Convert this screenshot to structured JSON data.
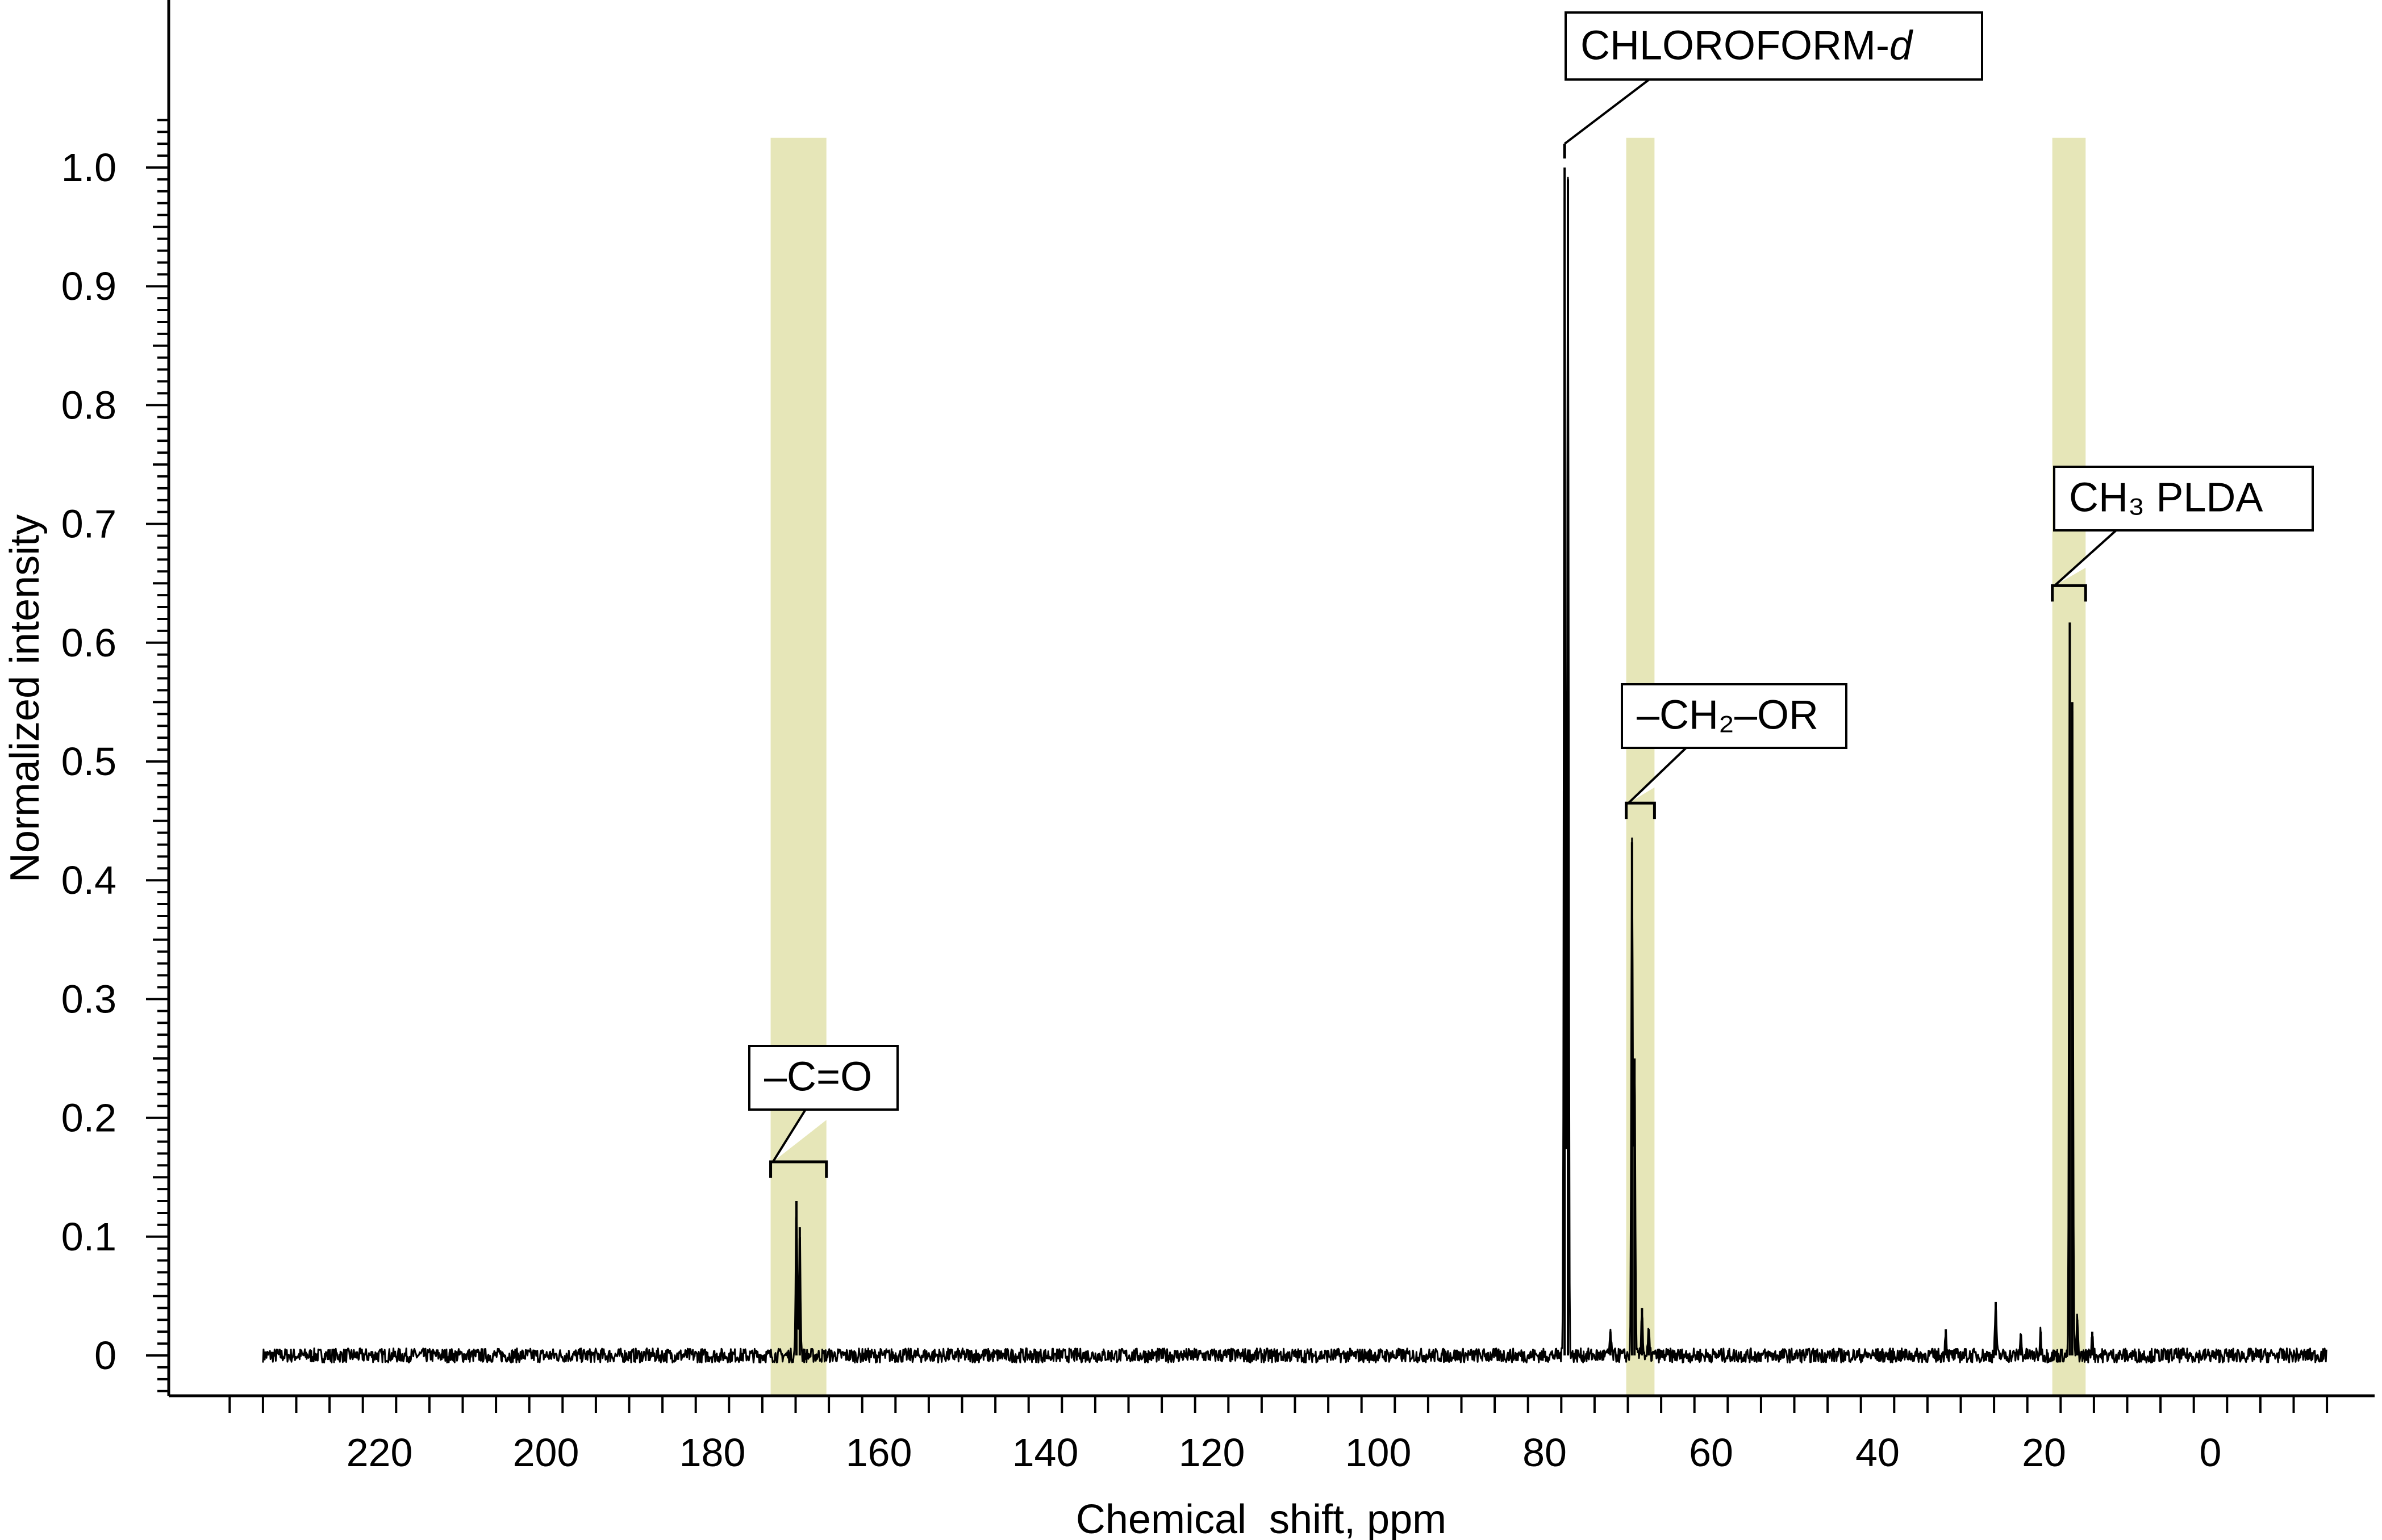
{
  "chart_data": {
    "type": "line",
    "xlabel": "Chemical  shift, ppm",
    "ylabel": "Normalized intensity",
    "xlim": [
      -14,
      240
    ],
    "x_reversed": true,
    "ylim": [
      -0.035,
      1.14
    ],
    "x_ticks": [
      220,
      200,
      180,
      160,
      140,
      120,
      100,
      80,
      60,
      40,
      20,
      0
    ],
    "x_tick_labels": [
      "220",
      "200",
      "180",
      "160",
      "140",
      "120",
      "100",
      "80",
      "60",
      "40",
      "20",
      "0"
    ],
    "y_ticks": [
      0,
      0.1,
      0.2,
      0.3,
      0.4,
      0.5,
      0.6,
      0.7,
      0.8,
      0.9,
      1.0
    ],
    "y_tick_labels": [
      "0",
      "0.1",
      "0.2",
      "0.3",
      "0.4",
      "0.5",
      "0.6",
      "0.7",
      "0.8",
      "0.9",
      "1.0"
    ],
    "grid": false,
    "legend": "none",
    "colors": {
      "line": "#000000",
      "band": "#e6e6b8",
      "axis": "#000000"
    },
    "series": [
      {
        "baseline_range": [
          234,
          -14
        ],
        "peaks": [
          {
            "x": 169.9,
            "y": 0.13
          },
          {
            "x": 169.5,
            "y": 0.108
          },
          {
            "x": 77.6,
            "y": 1.0
          },
          {
            "x": 77.2,
            "y": 0.99
          },
          {
            "x": 72.1,
            "y": 0.02
          },
          {
            "x": 69.5,
            "y": 0.432
          },
          {
            "x": 69.2,
            "y": 0.25
          },
          {
            "x": 68.3,
            "y": 0.04
          },
          {
            "x": 67.5,
            "y": 0.02
          },
          {
            "x": 31.8,
            "y": 0.022
          },
          {
            "x": 25.8,
            "y": 0.045
          },
          {
            "x": 22.8,
            "y": 0.018
          },
          {
            "x": 20.4,
            "y": 0.02
          },
          {
            "x": 16.9,
            "y": 0.617
          },
          {
            "x": 16.6,
            "y": 0.55
          },
          {
            "x": 16.0,
            "y": 0.03
          },
          {
            "x": 14.2,
            "y": 0.02
          }
        ]
      }
    ],
    "bands": [
      {
        "x_from": 173.0,
        "x_to": 166.3
      },
      {
        "x_from": 70.2,
        "x_to": 66.8
      },
      {
        "x_from": 19.0,
        "x_to": 15.0
      }
    ],
    "annotations": [
      {
        "text_main": "CHLOROFORM-",
        "text_italic": "d",
        "target_x": 77.6,
        "target_y": 1.02
      },
      {
        "text_main": "–CH₂–OR",
        "text_italic": "",
        "bracket_from": 70.2,
        "bracket_to": 66.8,
        "bracket_y": 0.465
      },
      {
        "text_main": "CH₃  PLDA",
        "text_italic": "",
        "bracket_from": 19.0,
        "bracket_to": 15.0,
        "bracket_y": 0.648
      },
      {
        "text_main": "–C=O",
        "text_italic": "",
        "bracket_from": 173.0,
        "bracket_to": 166.3,
        "bracket_y": 0.163
      }
    ]
  }
}
